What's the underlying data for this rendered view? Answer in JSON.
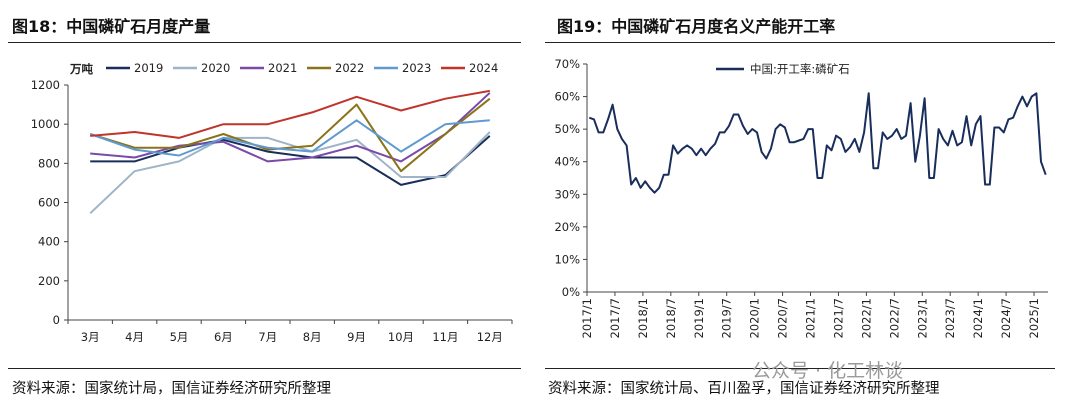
{
  "left": {
    "title": "图18：中国磷矿石月度产量",
    "source": "资料来源：国家统计局，国信证券经济研究所整理",
    "chart_data": {
      "type": "line",
      "unit_label": "万吨",
      "categories": [
        "3月",
        "4月",
        "5月",
        "6月",
        "7月",
        "8月",
        "9月",
        "10月",
        "11月",
        "12月"
      ],
      "ylim": [
        0,
        1200
      ],
      "yticks": [
        0,
        200,
        400,
        600,
        800,
        1000,
        1200
      ],
      "grid": false,
      "legend": "top",
      "series": [
        {
          "name": "2019",
          "color": "#1a2e5c",
          "values": [
            810,
            810,
            880,
            920,
            860,
            830,
            830,
            690,
            740,
            940
          ]
        },
        {
          "name": "2020",
          "color": "#9fb4c8",
          "values": [
            545,
            760,
            810,
            930,
            930,
            860,
            920,
            730,
            730,
            960
          ]
        },
        {
          "name": "2021",
          "color": "#7b4aa8",
          "values": [
            850,
            830,
            890,
            910,
            810,
            830,
            890,
            810,
            950,
            1160
          ]
        },
        {
          "name": "2022",
          "color": "#8a7318",
          "values": [
            950,
            880,
            880,
            950,
            870,
            890,
            1100,
            760,
            950,
            1130
          ]
        },
        {
          "name": "2023",
          "color": "#5f9bd0",
          "values": [
            950,
            870,
            840,
            930,
            880,
            860,
            1020,
            860,
            1000,
            1020
          ]
        },
        {
          "name": "2024",
          "color": "#c0342b",
          "values": [
            940,
            960,
            930,
            1000,
            1000,
            1060,
            1140,
            1070,
            1130,
            1170
          ]
        }
      ]
    }
  },
  "right": {
    "title": "图19：中国磷矿石月度名义产能开工率",
    "source": "资料来源：国家统计局、百川盈孚，国信证券经济研究所整理",
    "chart_data": {
      "type": "line",
      "ylim": [
        0,
        70
      ],
      "yticks": [
        "0%",
        "10%",
        "20%",
        "30%",
        "40%",
        "50%",
        "60%",
        "70%"
      ],
      "x_ticks": [
        "2017/1",
        "2017/7",
        "2018/1",
        "2018/7",
        "2019/1",
        "2019/7",
        "2020/1",
        "2020/7",
        "2021/1",
        "2021/7",
        "2022/1",
        "2022/7",
        "2023/1",
        "2023/7",
        "2024/1",
        "2024/7",
        "2025/1"
      ],
      "grid": false,
      "legend": "top",
      "series": [
        {
          "name": "中国:开工率:磷矿石",
          "color": "#1a2e5c",
          "start": "2017/1",
          "values": [
            53.5,
            53,
            49,
            49,
            53,
            57.5,
            50,
            47,
            45,
            33,
            35,
            32,
            34,
            32,
            30.5,
            32,
            36,
            36,
            45,
            42.5,
            44,
            45,
            44,
            42,
            44,
            42,
            44,
            45.5,
            49,
            49,
            51,
            54.5,
            54.5,
            51,
            48.5,
            50,
            49,
            43,
            41,
            44,
            50,
            51.5,
            50.5,
            46,
            46,
            46.5,
            47,
            50,
            50,
            35,
            35,
            45,
            43.5,
            48,
            47,
            43,
            44.5,
            47,
            43,
            49,
            61,
            38,
            38,
            49,
            47,
            48,
            50,
            47,
            48,
            58,
            40,
            48,
            59.5,
            35,
            35,
            50,
            47,
            45,
            49.5,
            45,
            46,
            54,
            45,
            51.5,
            54,
            33,
            33,
            50.5,
            50.5,
            49,
            53,
            53.5,
            57,
            60,
            57,
            60,
            61,
            40,
            36
          ]
        }
      ]
    }
  },
  "watermark": "公众号 · 化工林谈"
}
